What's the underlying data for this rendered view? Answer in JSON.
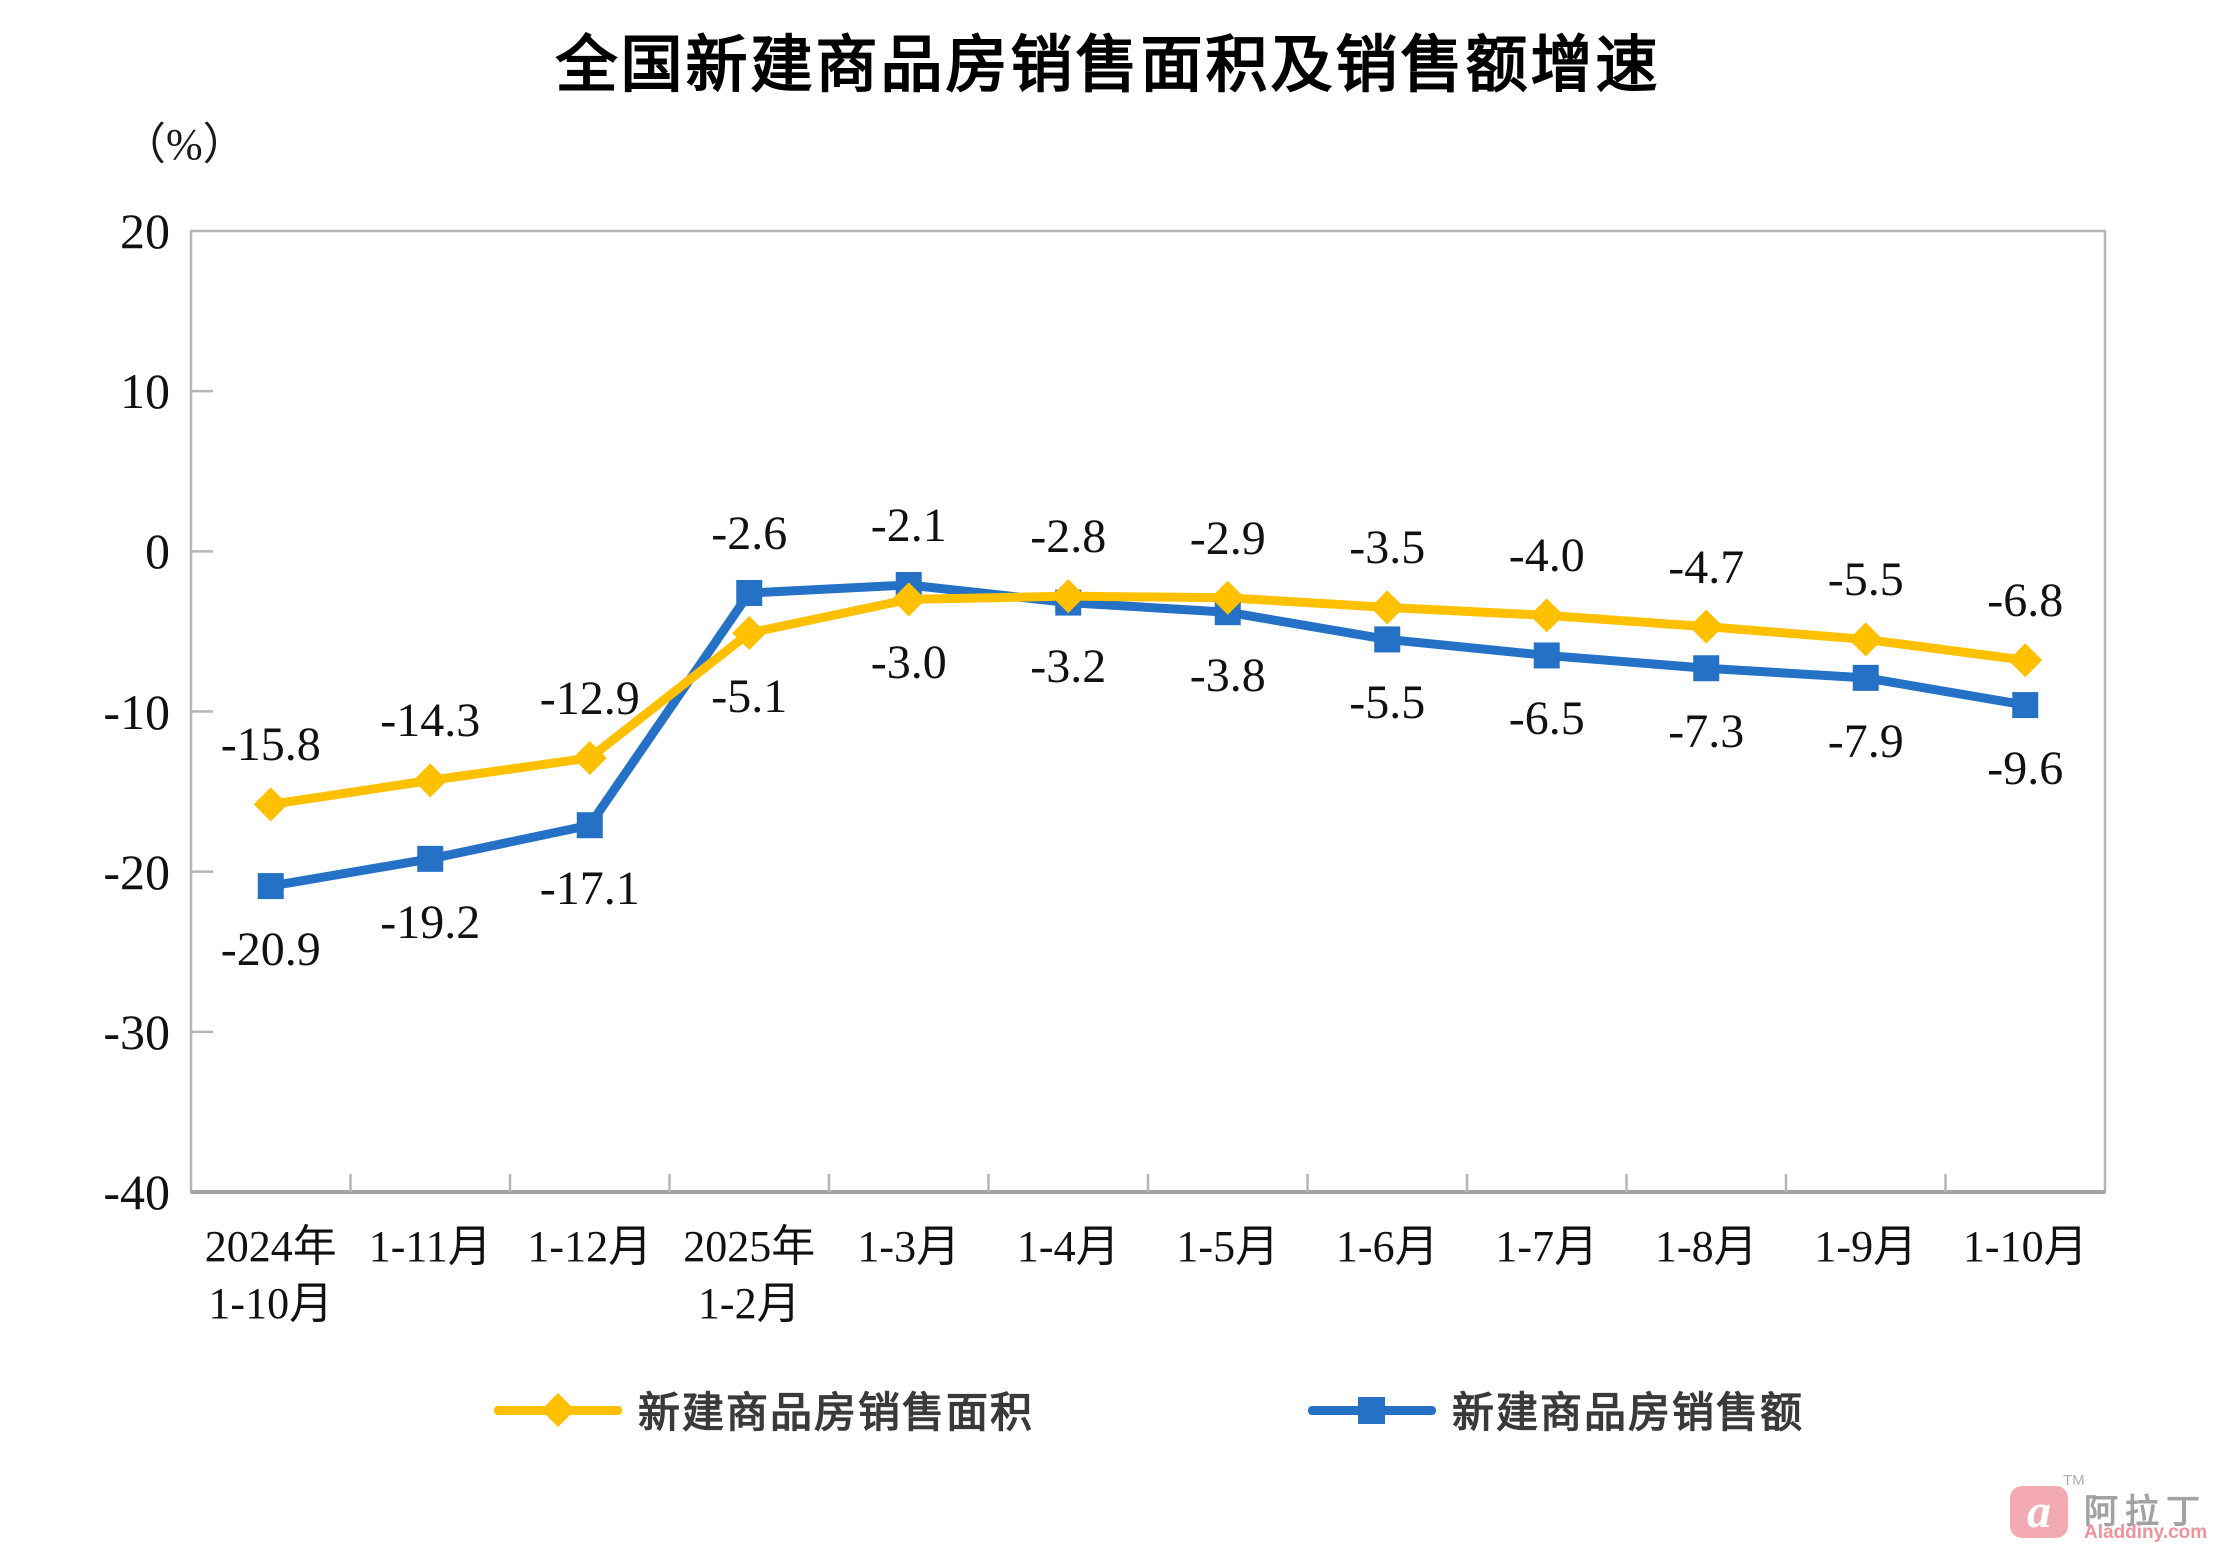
{
  "title": "全国新建商品房销售面积及销售额增速",
  "chart_data": {
    "type": "line",
    "categories": [
      "2024年\n1-10月",
      "1-11月",
      "1-12月",
      "2025年\n1-2月",
      "1-3月",
      "1-4月",
      "1-5月",
      "1-6月",
      "1-7月",
      "1-8月",
      "1-9月",
      "1-10月"
    ],
    "series": [
      {
        "name": "新建商品房销售面积",
        "color": "#FFC000",
        "marker": "diamond",
        "values": [
          -15.8,
          -14.3,
          -12.9,
          -5.1,
          -3.0,
          -2.8,
          -2.9,
          -3.5,
          -4.0,
          -4.7,
          -5.5,
          -6.8
        ]
      },
      {
        "name": "新建商品房销售额",
        "color": "#2471C5",
        "marker": "square",
        "values": [
          -20.9,
          -19.2,
          -17.1,
          -2.6,
          -2.1,
          -3.2,
          -3.8,
          -5.5,
          -6.5,
          -7.3,
          -7.9,
          -9.6
        ]
      }
    ],
    "title": "全国新建商品房销售面积及销售额增速",
    "ylabel": "（%）",
    "xlabel": "",
    "ylim": [
      -40,
      20
    ],
    "yticks": [
      20,
      10,
      0,
      -10,
      -20,
      -30,
      -40
    ],
    "grid": false,
    "data_labels": true,
    "legend_position": "bottom",
    "axis_color": "#b5b5b5",
    "label_color": "#111111"
  },
  "legend": {
    "items": [
      {
        "label": "新建商品房销售面积"
      },
      {
        "label": "新建商品房销售额"
      }
    ]
  },
  "watermark": {
    "logo_letter": "a",
    "tm": "TM",
    "name": "阿拉丁",
    "site": "Aladdiny.com"
  }
}
